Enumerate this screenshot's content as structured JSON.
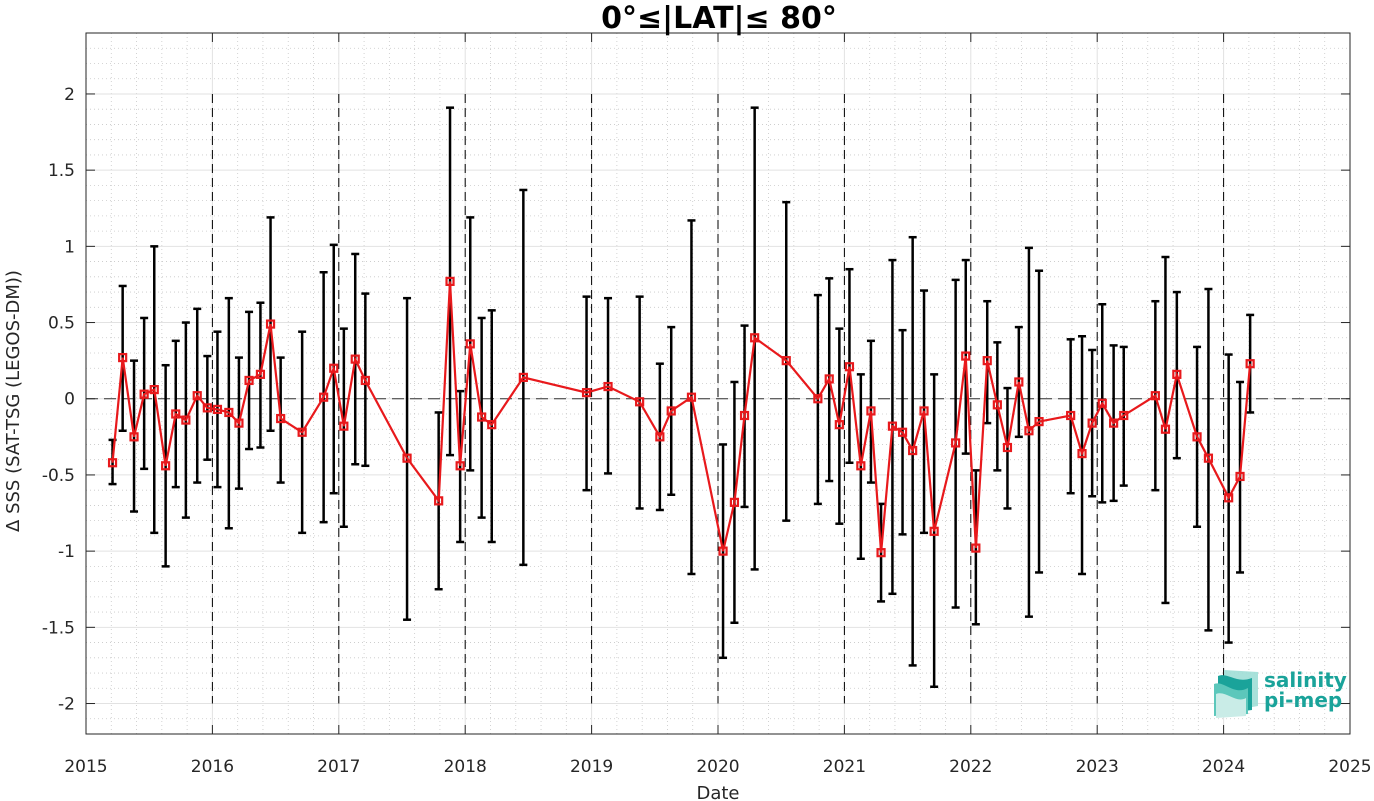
{
  "chart_data": {
    "type": "line",
    "title": "0°≤|LAT|≤ 80°",
    "xlabel": "Date",
    "ylabel": "Δ SSS (SAT-TSG (LEGOS-DM))",
    "xlim": [
      2015,
      2025
    ],
    "ylim": [
      -2.2,
      2.4
    ],
    "x_ticks": [
      "2015",
      "2016",
      "2017",
      "2018",
      "2019",
      "2020",
      "2021",
      "2022",
      "2023",
      "2024",
      "2025"
    ],
    "y_ticks": [
      "2",
      "1.5",
      "1",
      "0.5",
      "0",
      "-0.5",
      "-1",
      "-1.5",
      "-2"
    ],
    "grid": true,
    "line_color": "#e8191c",
    "errorbar_color": "#000000",
    "series": [
      {
        "values": [
          {
            "x": 2015.21,
            "y": -0.42,
            "lo": -0.56,
            "hi": -0.27
          },
          {
            "x": 2015.29,
            "y": 0.27,
            "lo": -0.21,
            "hi": 0.74
          },
          {
            "x": 2015.38,
            "y": -0.25,
            "lo": -0.74,
            "hi": 0.25
          },
          {
            "x": 2015.46,
            "y": 0.03,
            "lo": -0.46,
            "hi": 0.53
          },
          {
            "x": 2015.54,
            "y": 0.06,
            "lo": -0.88,
            "hi": 1.0
          },
          {
            "x": 2015.63,
            "y": -0.44,
            "lo": -1.1,
            "hi": 0.22
          },
          {
            "x": 2015.71,
            "y": -0.1,
            "lo": -0.58,
            "hi": 0.38
          },
          {
            "x": 2015.79,
            "y": -0.14,
            "lo": -0.78,
            "hi": 0.5
          },
          {
            "x": 2015.88,
            "y": 0.02,
            "lo": -0.55,
            "hi": 0.59
          },
          {
            "x": 2015.96,
            "y": -0.06,
            "lo": -0.4,
            "hi": 0.28
          },
          {
            "x": 2016.04,
            "y": -0.07,
            "lo": -0.58,
            "hi": 0.44
          },
          {
            "x": 2016.13,
            "y": -0.09,
            "lo": -0.85,
            "hi": 0.66
          },
          {
            "x": 2016.21,
            "y": -0.16,
            "lo": -0.59,
            "hi": 0.27
          },
          {
            "x": 2016.29,
            "y": 0.12,
            "lo": -0.33,
            "hi": 0.57
          },
          {
            "x": 2016.38,
            "y": 0.16,
            "lo": -0.32,
            "hi": 0.63
          },
          {
            "x": 2016.46,
            "y": 0.49,
            "lo": -0.21,
            "hi": 1.19
          },
          {
            "x": 2016.54,
            "y": -0.13,
            "lo": -0.55,
            "hi": 0.27
          },
          {
            "x": 2016.71,
            "y": -0.22,
            "lo": -0.88,
            "hi": 0.44
          },
          {
            "x": 2016.88,
            "y": 0.01,
            "lo": -0.81,
            "hi": 0.83
          },
          {
            "x": 2016.96,
            "y": 0.2,
            "lo": -0.62,
            "hi": 1.01
          },
          {
            "x": 2017.04,
            "y": -0.18,
            "lo": -0.84,
            "hi": 0.46
          },
          {
            "x": 2017.13,
            "y": 0.26,
            "lo": -0.43,
            "hi": 0.95
          },
          {
            "x": 2017.21,
            "y": 0.12,
            "lo": -0.44,
            "hi": 0.69
          },
          {
            "x": 2017.54,
            "y": -0.39,
            "lo": -1.45,
            "hi": 0.66
          },
          {
            "x": 2017.79,
            "y": -0.67,
            "lo": -1.25,
            "hi": -0.09
          },
          {
            "x": 2017.88,
            "y": 0.77,
            "lo": -0.37,
            "hi": 1.91
          },
          {
            "x": 2017.96,
            "y": -0.44,
            "lo": -0.94,
            "hi": 0.05
          },
          {
            "x": 2018.04,
            "y": 0.36,
            "lo": -0.47,
            "hi": 1.19
          },
          {
            "x": 2018.13,
            "y": -0.12,
            "lo": -0.78,
            "hi": 0.53
          },
          {
            "x": 2018.21,
            "y": -0.17,
            "lo": -0.94,
            "hi": 0.58
          },
          {
            "x": 2018.46,
            "y": 0.14,
            "lo": -1.09,
            "hi": 1.37
          },
          {
            "x": 2018.96,
            "y": 0.04,
            "lo": -0.6,
            "hi": 0.67
          },
          {
            "x": 2019.13,
            "y": 0.08,
            "lo": -0.49,
            "hi": 0.66
          },
          {
            "x": 2019.38,
            "y": -0.02,
            "lo": -0.72,
            "hi": 0.67
          },
          {
            "x": 2019.54,
            "y": -0.25,
            "lo": -0.73,
            "hi": 0.23
          },
          {
            "x": 2019.63,
            "y": -0.08,
            "lo": -0.63,
            "hi": 0.47
          },
          {
            "x": 2019.79,
            "y": 0.01,
            "lo": -1.15,
            "hi": 1.17
          },
          {
            "x": 2020.04,
            "y": -1.0,
            "lo": -1.7,
            "hi": -0.3
          },
          {
            "x": 2020.13,
            "y": -0.68,
            "lo": -1.47,
            "hi": 0.11
          },
          {
            "x": 2020.21,
            "y": -0.11,
            "lo": -0.71,
            "hi": 0.48
          },
          {
            "x": 2020.29,
            "y": 0.4,
            "lo": -1.12,
            "hi": 1.91
          },
          {
            "x": 2020.54,
            "y": 0.25,
            "lo": -0.8,
            "hi": 1.29
          },
          {
            "x": 2020.79,
            "y": 0.0,
            "lo": -0.69,
            "hi": 0.68
          },
          {
            "x": 2020.88,
            "y": 0.13,
            "lo": -0.54,
            "hi": 0.79
          },
          {
            "x": 2020.96,
            "y": -0.17,
            "lo": -0.82,
            "hi": 0.46
          },
          {
            "x": 2021.04,
            "y": 0.21,
            "lo": -0.42,
            "hi": 0.85
          },
          {
            "x": 2021.13,
            "y": -0.44,
            "lo": -1.05,
            "hi": 0.16
          },
          {
            "x": 2021.21,
            "y": -0.08,
            "lo": -0.55,
            "hi": 0.38
          },
          {
            "x": 2021.29,
            "y": -1.01,
            "lo": -1.33,
            "hi": -0.69
          },
          {
            "x": 2021.38,
            "y": -0.18,
            "lo": -1.28,
            "hi": 0.91
          },
          {
            "x": 2021.46,
            "y": -0.22,
            "lo": -0.89,
            "hi": 0.45
          },
          {
            "x": 2021.54,
            "y": -0.34,
            "lo": -1.75,
            "hi": 1.06
          },
          {
            "x": 2021.63,
            "y": -0.08,
            "lo": -0.88,
            "hi": 0.71
          },
          {
            "x": 2021.71,
            "y": -0.87,
            "lo": -1.89,
            "hi": 0.16
          },
          {
            "x": 2021.88,
            "y": -0.29,
            "lo": -1.37,
            "hi": 0.78
          },
          {
            "x": 2021.96,
            "y": 0.28,
            "lo": -0.36,
            "hi": 0.91
          },
          {
            "x": 2022.04,
            "y": -0.98,
            "lo": -1.48,
            "hi": -0.47
          },
          {
            "x": 2022.13,
            "y": 0.25,
            "lo": -0.16,
            "hi": 0.64
          },
          {
            "x": 2022.21,
            "y": -0.04,
            "lo": -0.47,
            "hi": 0.37
          },
          {
            "x": 2022.29,
            "y": -0.32,
            "lo": -0.72,
            "hi": 0.07
          },
          {
            "x": 2022.38,
            "y": 0.11,
            "lo": -0.25,
            "hi": 0.47
          },
          {
            "x": 2022.46,
            "y": -0.21,
            "lo": -1.43,
            "hi": 0.99
          },
          {
            "x": 2022.54,
            "y": -0.15,
            "lo": -1.14,
            "hi": 0.84
          },
          {
            "x": 2022.79,
            "y": -0.11,
            "lo": -0.62,
            "hi": 0.39
          },
          {
            "x": 2022.88,
            "y": -0.36,
            "lo": -1.15,
            "hi": 0.41
          },
          {
            "x": 2022.96,
            "y": -0.16,
            "lo": -0.64,
            "hi": 0.32
          },
          {
            "x": 2023.04,
            "y": -0.03,
            "lo": -0.68,
            "hi": 0.62
          },
          {
            "x": 2023.13,
            "y": -0.16,
            "lo": -0.67,
            "hi": 0.35
          },
          {
            "x": 2023.21,
            "y": -0.11,
            "lo": -0.57,
            "hi": 0.34
          },
          {
            "x": 2023.46,
            "y": 0.02,
            "lo": -0.6,
            "hi": 0.64
          },
          {
            "x": 2023.54,
            "y": -0.2,
            "lo": -1.34,
            "hi": 0.93
          },
          {
            "x": 2023.63,
            "y": 0.16,
            "lo": -0.39,
            "hi": 0.7
          },
          {
            "x": 2023.79,
            "y": -0.25,
            "lo": -0.84,
            "hi": 0.34
          },
          {
            "x": 2023.88,
            "y": -0.39,
            "lo": -1.52,
            "hi": 0.72
          },
          {
            "x": 2024.04,
            "y": -0.65,
            "lo": -1.6,
            "hi": 0.29
          },
          {
            "x": 2024.13,
            "y": -0.51,
            "lo": -1.14,
            "hi": 0.11
          },
          {
            "x": 2024.21,
            "y": 0.23,
            "lo": -0.09,
            "hi": 0.55
          }
        ]
      }
    ]
  },
  "logo": {
    "line1": "salinity",
    "line2": "pi-mep",
    "icon": "layered-waves-icon",
    "color": "#1aa39a"
  }
}
